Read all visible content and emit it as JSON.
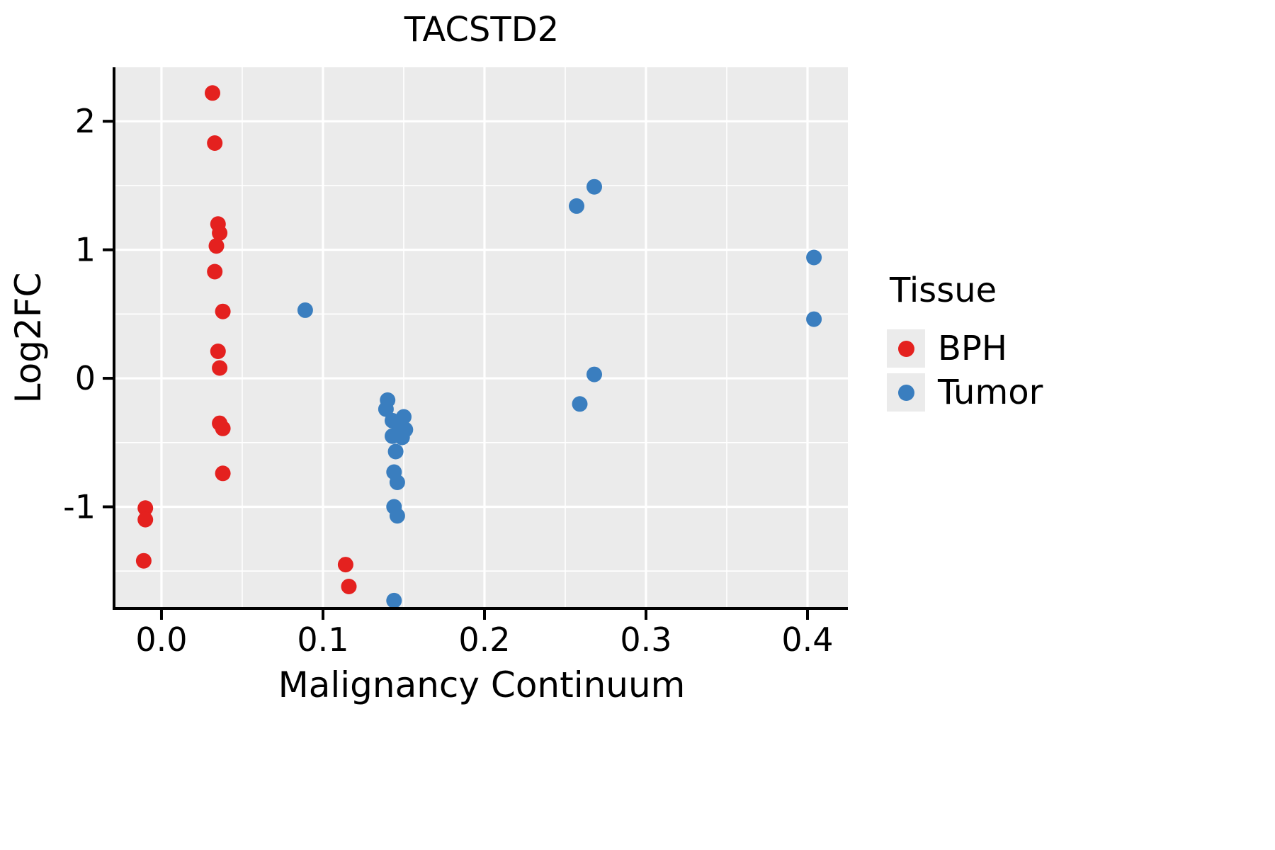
{
  "chart_data": {
    "type": "scatter",
    "title": "TACSTD2",
    "xlabel": "Malignancy Continuum",
    "ylabel": "Log2FC",
    "xlim": [
      -0.0285,
      0.425
    ],
    "ylim": [
      -1.78,
      2.42
    ],
    "x_ticks": [
      0.0,
      0.1,
      0.2,
      0.3,
      0.4
    ],
    "x_tick_labels": [
      "0.0",
      "0.1",
      "0.2",
      "0.3",
      "0.4"
    ],
    "x_minor_ticks": [
      0.05,
      0.15,
      0.25,
      0.35
    ],
    "y_ticks": [
      -1,
      0,
      1,
      2
    ],
    "y_tick_labels": [
      "-1",
      "0",
      "1",
      "2"
    ],
    "y_minor_ticks": [
      -1.5,
      -0.5,
      0.5,
      1.5
    ],
    "grid": true,
    "panel_background": "#EBEBEB",
    "grid_color": "#FFFFFF",
    "axis_color": "#000000",
    "point_radius": 11,
    "legend": {
      "title": "Tissue",
      "position": "right"
    },
    "series": [
      {
        "name": "BPH",
        "color": "#E4211F",
        "points": [
          [
            -0.01,
            -1.01
          ],
          [
            -0.01,
            -1.1
          ],
          [
            -0.011,
            -1.42
          ],
          [
            0.0316,
            2.22
          ],
          [
            0.033,
            1.83
          ],
          [
            0.035,
            1.2
          ],
          [
            0.036,
            1.13
          ],
          [
            0.034,
            1.03
          ],
          [
            0.033,
            0.83
          ],
          [
            0.038,
            0.52
          ],
          [
            0.035,
            0.21
          ],
          [
            0.036,
            0.08
          ],
          [
            0.036,
            -0.35
          ],
          [
            0.038,
            -0.39
          ],
          [
            0.038,
            -0.74
          ],
          [
            0.114,
            -1.45
          ],
          [
            0.116,
            -1.62
          ]
        ]
      },
      {
        "name": "Tumor",
        "color": "#3A7EBF",
        "points": [
          [
            0.089,
            0.53
          ],
          [
            0.257,
            1.34
          ],
          [
            0.268,
            1.49
          ],
          [
            0.404,
            0.94
          ],
          [
            0.404,
            0.46
          ],
          [
            0.268,
            0.03
          ],
          [
            0.259,
            -0.2
          ],
          [
            0.14,
            -0.17
          ],
          [
            0.139,
            -0.24
          ],
          [
            0.143,
            -0.33
          ],
          [
            0.15,
            -0.3
          ],
          [
            0.147,
            -0.36
          ],
          [
            0.151,
            -0.4
          ],
          [
            0.146,
            -0.43
          ],
          [
            0.149,
            -0.46
          ],
          [
            0.143,
            -0.45
          ],
          [
            0.145,
            -0.57
          ],
          [
            0.144,
            -0.73
          ],
          [
            0.146,
            -0.81
          ],
          [
            0.144,
            -1.0
          ],
          [
            0.146,
            -1.07
          ],
          [
            0.144,
            -1.73
          ]
        ]
      }
    ]
  }
}
